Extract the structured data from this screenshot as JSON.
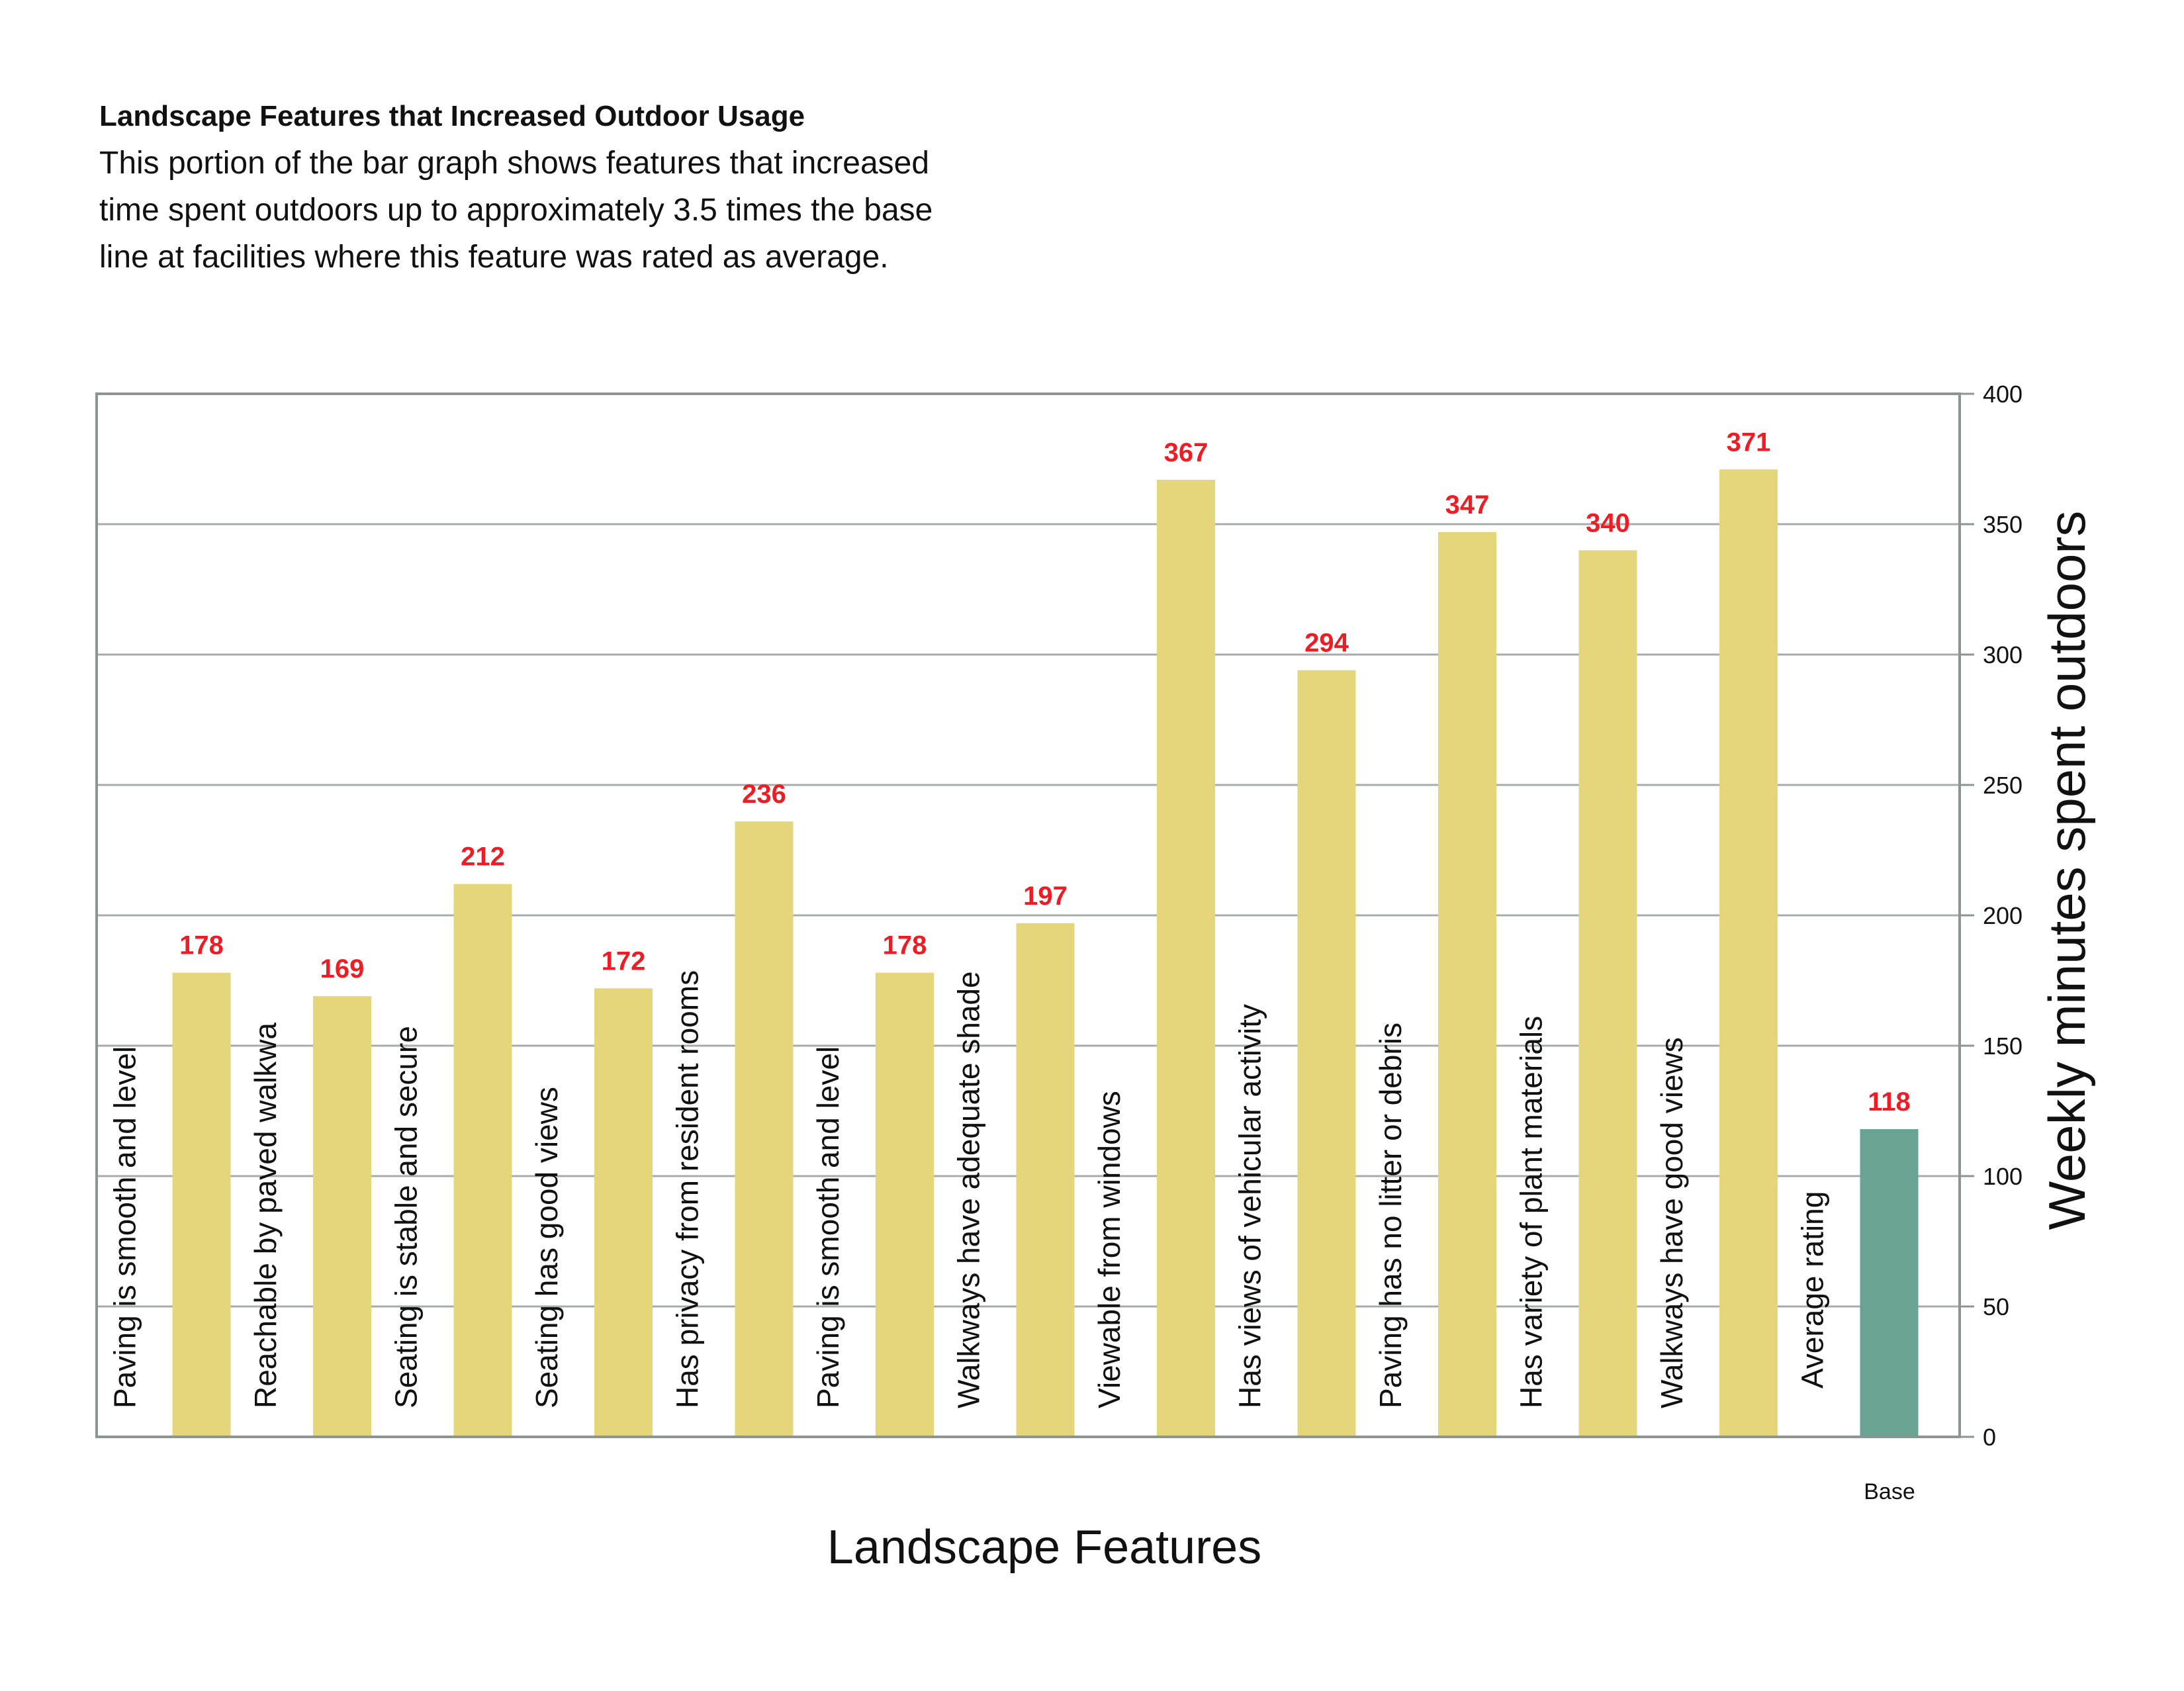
{
  "chart_data": {
    "type": "bar",
    "title": "Landscape Features that Increased Outdoor Usage",
    "subtitle": [
      "This portion of the bar graph shows features that increased",
      "time spent outdoors up to approximately 3.5 times the base",
      "line at facilities where this feature was rated as average."
    ],
    "xlabel": "Landscape Features",
    "ylabel": "Weekly minutes spent outdoors",
    "ylim": [
      0,
      400
    ],
    "yticks": [
      0,
      50,
      100,
      150,
      200,
      250,
      300,
      350,
      400
    ],
    "grid": true,
    "y_axis_side": "right",
    "categories": [
      "Paving is smooth and level",
      "Reachable by paved walkwa",
      "Seating is stable and secure",
      "Seating has good views",
      "Has privacy from resident rooms",
      "Paving is smooth and level",
      "Walkways have adequate shade",
      "Viewable from windows",
      "Has views of vehicular activity",
      "Paving has no litter or debris",
      "Has variety of plant materials",
      "Walkways have good views",
      "Average rating"
    ],
    "values": [
      178,
      169,
      212,
      172,
      236,
      178,
      197,
      367,
      294,
      347,
      340,
      371,
      118
    ],
    "value_labels": [
      "178",
      "169",
      "212",
      "172",
      "236",
      "178",
      "197",
      "367",
      "294",
      "347",
      "340",
      "371",
      "118"
    ],
    "base_label": "Base",
    "colors": {
      "feature_bar": "#E5D67C",
      "base_bar": "#6AA294",
      "value_label": "#EE1C24",
      "grid": "#A7ACAB",
      "axis": "#8C9593",
      "text": "#111111"
    }
  }
}
